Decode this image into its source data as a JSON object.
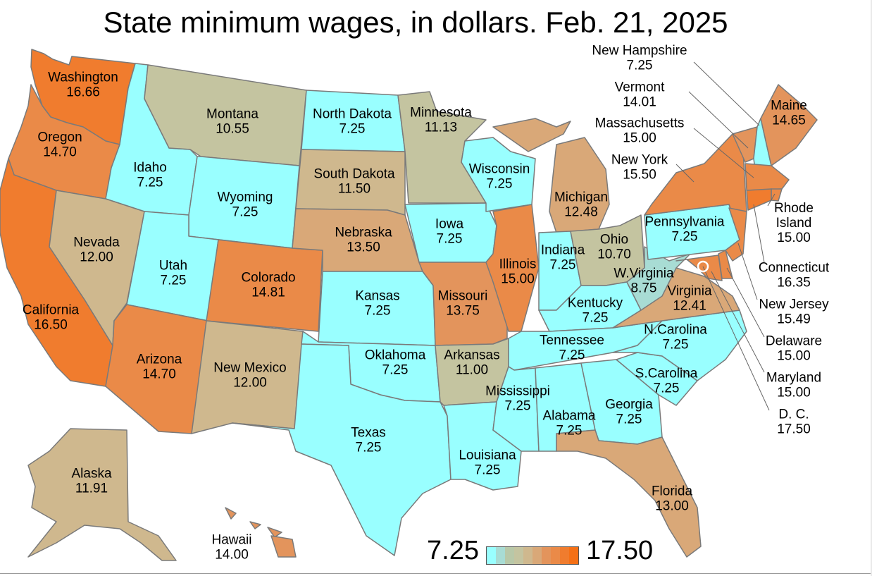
{
  "title": "State minimum wages, in dollars. Feb. 21, 2025",
  "scale": {
    "min_label": "7.25",
    "max_label": "17.50",
    "min": 7.25,
    "max": 17.5,
    "colors": [
      "#99ffff",
      "#a8dcd4",
      "#b8c8a8",
      "#c4c4a0",
      "#cfb88e",
      "#d9a878",
      "#e3945c",
      "#ea8a48",
      "#f07c2e",
      "#f57015"
    ]
  },
  "states": {
    "WA": {
      "name": "Washington",
      "wage": "16.66",
      "value": 16.66
    },
    "OR": {
      "name": "Oregon",
      "wage": "14.70",
      "value": 14.7
    },
    "CA": {
      "name": "California",
      "wage": "16.50",
      "value": 16.5
    },
    "ID": {
      "name": "Idaho",
      "wage": "7.25",
      "value": 7.25
    },
    "NV": {
      "name": "Nevada",
      "wage": "12.00",
      "value": 12.0
    },
    "MT": {
      "name": "Montana",
      "wage": "10.55",
      "value": 10.55
    },
    "WY": {
      "name": "Wyoming",
      "wage": "7.25",
      "value": 7.25
    },
    "UT": {
      "name": "Utah",
      "wage": "7.25",
      "value": 7.25
    },
    "AZ": {
      "name": "Arizona",
      "wage": "14.70",
      "value": 14.7
    },
    "CO": {
      "name": "Colorado",
      "wage": "14.81",
      "value": 14.81
    },
    "NM": {
      "name": "New Mexico",
      "wage": "12.00",
      "value": 12.0
    },
    "ND": {
      "name": "North Dakota",
      "wage": "7.25",
      "value": 7.25
    },
    "SD": {
      "name": "South Dakota",
      "wage": "11.50",
      "value": 11.5
    },
    "NE": {
      "name": "Nebraska",
      "wage": "13.50",
      "value": 13.5
    },
    "KS": {
      "name": "Kansas",
      "wage": "7.25",
      "value": 7.25
    },
    "OK": {
      "name": "Oklahoma",
      "wage": "7.25",
      "value": 7.25
    },
    "TX": {
      "name": "Texas",
      "wage": "7.25",
      "value": 7.25
    },
    "MN": {
      "name": "Minnesota",
      "wage": "11.13",
      "value": 11.13
    },
    "IA": {
      "name": "Iowa",
      "wage": "7.25",
      "value": 7.25
    },
    "MO": {
      "name": "Missouri",
      "wage": "13.75",
      "value": 13.75
    },
    "AR": {
      "name": "Arkansas",
      "wage": "11.00",
      "value": 11.0
    },
    "LA": {
      "name": "Louisiana",
      "wage": "7.25",
      "value": 7.25
    },
    "WI": {
      "name": "Wisconsin",
      "wage": "7.25",
      "value": 7.25
    },
    "IL": {
      "name": "Illinois",
      "wage": "15.00",
      "value": 15.0
    },
    "MI": {
      "name": "Michigan",
      "wage": "12.48",
      "value": 12.48
    },
    "IN": {
      "name": "Indiana",
      "wage": "7.25",
      "value": 7.25
    },
    "OH": {
      "name": "Ohio",
      "wage": "10.70",
      "value": 10.7
    },
    "KY": {
      "name": "Kentucky",
      "wage": "7.25",
      "value": 7.25
    },
    "TN": {
      "name": "Tennessee",
      "wage": "7.25",
      "value": 7.25
    },
    "MS": {
      "name": "Mississippi",
      "wage": "7.25",
      "value": 7.25
    },
    "AL": {
      "name": "Alabama",
      "wage": "7.25",
      "value": 7.25
    },
    "GA": {
      "name": "Georgia",
      "wage": "7.25",
      "value": 7.25
    },
    "FL": {
      "name": "Florida",
      "wage": "13.00",
      "value": 13.0
    },
    "SC": {
      "name": "S.Carolina",
      "wage": "7.25",
      "value": 7.25
    },
    "NC": {
      "name": "N.Carolina",
      "wage": "7.25",
      "value": 7.25
    },
    "VA": {
      "name": "Virginia",
      "wage": "12.41",
      "value": 12.41
    },
    "WV": {
      "name": "W.Virginia",
      "wage": "8.75",
      "value": 8.75
    },
    "PA": {
      "name": "Pennsylvania",
      "wage": "7.25",
      "value": 7.25
    },
    "NY": {
      "name": "New York",
      "wage": "15.50",
      "value": 15.5
    },
    "VT": {
      "name": "Vermont",
      "wage": "14.01",
      "value": 14.01
    },
    "NH": {
      "name": "New Hampshire",
      "wage": "7.25",
      "value": 7.25
    },
    "ME": {
      "name": "Maine",
      "wage": "14.65",
      "value": 14.65
    },
    "MA": {
      "name": "Massachusetts",
      "wage": "15.00",
      "value": 15.0
    },
    "RI": {
      "name": "Rhode Island",
      "name_lines": [
        "Rhode",
        "Island"
      ],
      "wage": "15.00",
      "value": 15.0
    },
    "CT": {
      "name": "Connecticut",
      "wage": "16.35",
      "value": 16.35
    },
    "NJ": {
      "name": "New Jersey",
      "wage": "15.49",
      "value": 15.49
    },
    "DE": {
      "name": "Delaware",
      "wage": "15.00",
      "value": 15.0
    },
    "MD": {
      "name": "Maryland",
      "wage": "15.00",
      "value": 15.0
    },
    "DC": {
      "name": "D. C.",
      "wage": "17.50",
      "value": 17.5
    },
    "AK": {
      "name": "Alaska",
      "wage": "11.91",
      "value": 11.91
    },
    "HI": {
      "name": "Hawaii",
      "wage": "14.00",
      "value": 14.0
    }
  }
}
